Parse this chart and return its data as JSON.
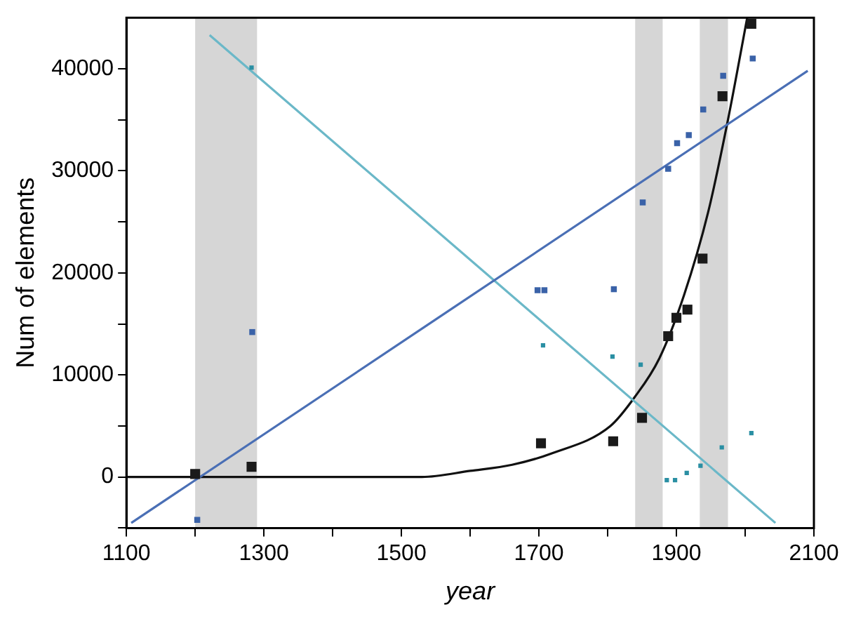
{
  "chart_data": {
    "type": "scatter",
    "xlabel": "year",
    "ylabel": "Num of elements",
    "xlim": [
      1100,
      2100
    ],
    "xticks": [
      1100,
      {
        "value": 1200,
        "label": null
      },
      1300,
      {
        "value": 1400,
        "label": null
      },
      1500,
      {
        "value": 1600,
        "label": null
      },
      1700,
      {
        "value": 1800,
        "label": null
      },
      1900,
      {
        "value": 2000,
        "label": null
      },
      2100
    ],
    "ylim": [
      -5000,
      45000
    ],
    "yticks": [
      {
        "value": -5000,
        "label": null
      },
      0,
      {
        "value": 5000,
        "label": null
      },
      10000,
      {
        "value": 15000,
        "label": null
      },
      20000,
      {
        "value": 25000,
        "label": null
      },
      30000,
      {
        "value": 35000,
        "label": null
      },
      40000
    ],
    "grid": false,
    "legend": false,
    "marker": "square",
    "bands": [
      {
        "axis": "x",
        "from": 1200,
        "to": 1290,
        "color": "#d6d6d6"
      },
      {
        "axis": "x",
        "from": 1840,
        "to": 1880,
        "color": "#d6d6d6"
      },
      {
        "axis": "x",
        "from": 1934,
        "to": 1975,
        "color": "#d6d6d6"
      }
    ],
    "series": [
      {
        "type": "scatter",
        "color": "#1a1a1a",
        "x": [
          1200,
          1282,
          1703,
          1808,
          1850,
          1888,
          1900,
          1916,
          1938,
          1967,
          2009
        ],
        "values": [
          300,
          1000,
          3300,
          3500,
          5800,
          13800,
          15600,
          16400,
          21400,
          37300,
          44400
        ]
      },
      {
        "type": "scatter",
        "color": "#3a62a8",
        "x": [
          1203,
          1283,
          1698,
          1708,
          1809,
          1851,
          1888,
          1901,
          1918,
          1939,
          1968,
          2011
        ],
        "values": [
          -4200,
          14200,
          18300,
          18300,
          18400,
          26900,
          30200,
          32700,
          33500,
          36000,
          39300,
          41000
        ]
      },
      {
        "type": "scatter",
        "color": "#2a8fa3",
        "x": [
          1282,
          1698,
          1706,
          1807,
          1848,
          1886,
          1898,
          1915,
          1935,
          1966,
          2009
        ],
        "values": [
          40100,
          null,
          12900,
          11800,
          11000,
          -300,
          -300,
          400,
          1100,
          2900,
          4300
        ]
      },
      {
        "type": "line",
        "marker": "none",
        "color": "#4a6fb5",
        "x": [
          1107,
          2091
        ],
        "values": [
          -4500,
          39800
        ]
      },
      {
        "type": "line",
        "marker": "none",
        "color": "#6bb8c8",
        "x": [
          1221,
          2044
        ],
        "values": [
          43300,
          -4500
        ]
      },
      {
        "type": "line",
        "marker": "none",
        "color": "#111111",
        "x": [
          1100,
          1530,
          1600,
          1661,
          1718,
          1804,
          1839,
          1875,
          1911,
          1946,
          1975,
          2003
        ],
        "values": [
          0,
          0,
          600,
          1200,
          2300,
          5000,
          7800,
          11600,
          17800,
          25900,
          35000,
          45000
        ]
      }
    ]
  }
}
